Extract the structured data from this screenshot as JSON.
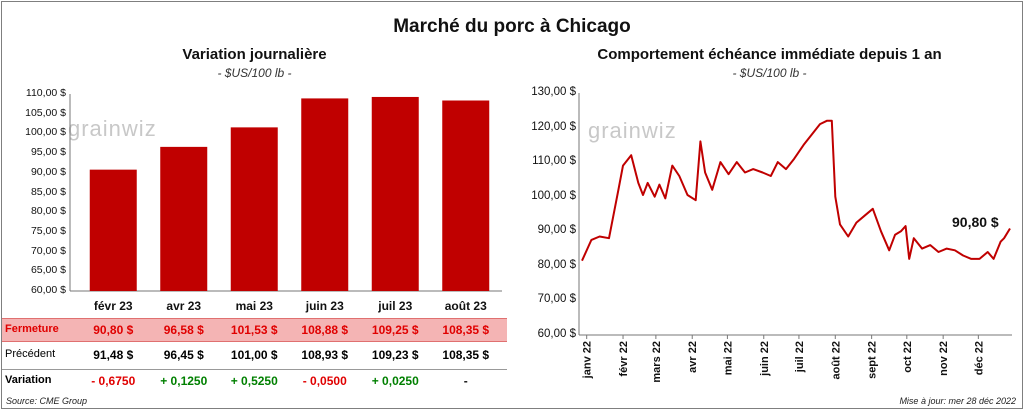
{
  "main_title": "Marché du porc à Chicago",
  "left_chart": {
    "title": "Variation  journalière",
    "subtitle": "- $US/100 lb -",
    "watermark": "grainwiz",
    "ytick_labels": [
      "110,00 $",
      "105,00 $",
      "100,00 $",
      "95,00 $",
      "90,00 $",
      "85,00 $",
      "80,00 $",
      "75,00 $",
      "70,00 $",
      "65,00 $",
      "60,00 $"
    ],
    "categories": [
      "févr 23",
      "avr 23",
      "mai 23",
      "juin 23",
      "juil 23",
      "août 23"
    ]
  },
  "table": {
    "rows": [
      {
        "label": "Fermeture",
        "cells": [
          "90,80  $",
          "96,58  $",
          "101,53  $",
          "108,88  $",
          "109,25  $",
          "108,35  $"
        ]
      },
      {
        "label": "Précédent",
        "cells": [
          "91,48  $",
          "96,45  $",
          "101,00  $",
          "108,93  $",
          "109,23  $",
          "108,35  $"
        ]
      },
      {
        "label": "Variation",
        "cells": [
          "- 0,6750",
          "+ 0,1250",
          "+ 0,5250",
          "- 0,0500",
          "+ 0,0250",
          "-"
        ]
      }
    ]
  },
  "right_chart": {
    "title": "Comportement  échéance immédiate depuis 1 an",
    "subtitle": "- $US/100 lb -",
    "watermark": "grainwiz",
    "ytick_labels": [
      "130,00 $",
      "120,00 $",
      "110,00 $",
      "100,00 $",
      "90,00 $",
      "80,00 $",
      "70,00 $",
      "60,00 $"
    ],
    "xtick_labels": [
      "janv 22",
      "févr 22",
      "mars 22",
      "avr 22",
      "mai 22",
      "juin 22",
      "juil 22",
      "août 22",
      "sept 22",
      "oct 22",
      "nov 22",
      "déc 22"
    ],
    "last_label": "90,80 $"
  },
  "footer": {
    "source": "Source: CME Group",
    "updated": "Mise à jour: mer 28 déc 2022"
  },
  "colors": {
    "bar": "#c00000",
    "line": "#c00000",
    "highlight_row": "#f4b4b4",
    "negative": "#e00000",
    "positive": "#008000"
  },
  "chart_data": [
    {
      "type": "bar",
      "title": "Variation  journalière",
      "subtitle": "- $US/100 lb -",
      "categories": [
        "févr 23",
        "avr 23",
        "mai 23",
        "juin 23",
        "juil 23",
        "août 23"
      ],
      "series": [
        {
          "name": "Fermeture",
          "values": [
            90.8,
            96.58,
            101.53,
            108.88,
            109.25,
            108.35
          ]
        }
      ],
      "ylim": [
        60,
        110
      ],
      "grid": false
    },
    {
      "type": "line",
      "title": "Comportement  échéance immédiate depuis 1 an",
      "subtitle": "- $US/100 lb -",
      "ylim": [
        60,
        130
      ],
      "x_ticks": [
        "janv 22",
        "févr 22",
        "mars 22",
        "avr 22",
        "mai 22",
        "juin 22",
        "juil 22",
        "août 22",
        "sept 22",
        "oct 22",
        "nov 22",
        "déc 22"
      ],
      "x": [
        "2021-12-28",
        "2022-01-05",
        "2022-01-12",
        "2022-01-20",
        "2022-01-28",
        "2022-02-01",
        "2022-02-08",
        "2022-02-14",
        "2022-02-18",
        "2022-02-22",
        "2022-02-28",
        "2022-03-04",
        "2022-03-09",
        "2022-03-15",
        "2022-03-21",
        "2022-03-28",
        "2022-04-04",
        "2022-04-08",
        "2022-04-12",
        "2022-04-18",
        "2022-04-25",
        "2022-05-02",
        "2022-05-09",
        "2022-05-16",
        "2022-05-23",
        "2022-05-31",
        "2022-06-07",
        "2022-06-13",
        "2022-06-20",
        "2022-06-27",
        "2022-07-05",
        "2022-07-12",
        "2022-07-19",
        "2022-07-25",
        "2022-07-29",
        "2022-08-01",
        "2022-08-05",
        "2022-08-12",
        "2022-08-19",
        "2022-08-26",
        "2022-09-02",
        "2022-09-09",
        "2022-09-16",
        "2022-09-21",
        "2022-09-26",
        "2022-09-30",
        "2022-10-03",
        "2022-10-07",
        "2022-10-14",
        "2022-10-21",
        "2022-10-28",
        "2022-11-04",
        "2022-11-11",
        "2022-11-18",
        "2022-11-25",
        "2022-12-02",
        "2022-12-09",
        "2022-12-14",
        "2022-12-20",
        "2022-12-23",
        "2022-12-28"
      ],
      "series": [
        {
          "name": "",
          "values": [
            81.5,
            87.5,
            88.5,
            88.0,
            102.0,
            109.0,
            112.0,
            104.0,
            100.5,
            104.0,
            100.0,
            103.5,
            99.5,
            109.0,
            106.0,
            100.5,
            99.0,
            116.0,
            107.0,
            102.0,
            110.0,
            106.5,
            110.0,
            107.0,
            108.0,
            107.0,
            106.0,
            110.0,
            108.0,
            111.0,
            115.0,
            118.0,
            121.0,
            122.0,
            122.0,
            100.0,
            92.0,
            88.5,
            92.5,
            94.5,
            96.5,
            90.0,
            84.5,
            89.0,
            90.0,
            91.5,
            82.0,
            88.0,
            85.0,
            86.0,
            84.0,
            85.0,
            84.5,
            83.0,
            82.0,
            82.0,
            84.0,
            82.0,
            87.0,
            88.0,
            90.8
          ]
        }
      ],
      "last_label": "90,80 $",
      "grid": false
    }
  ]
}
